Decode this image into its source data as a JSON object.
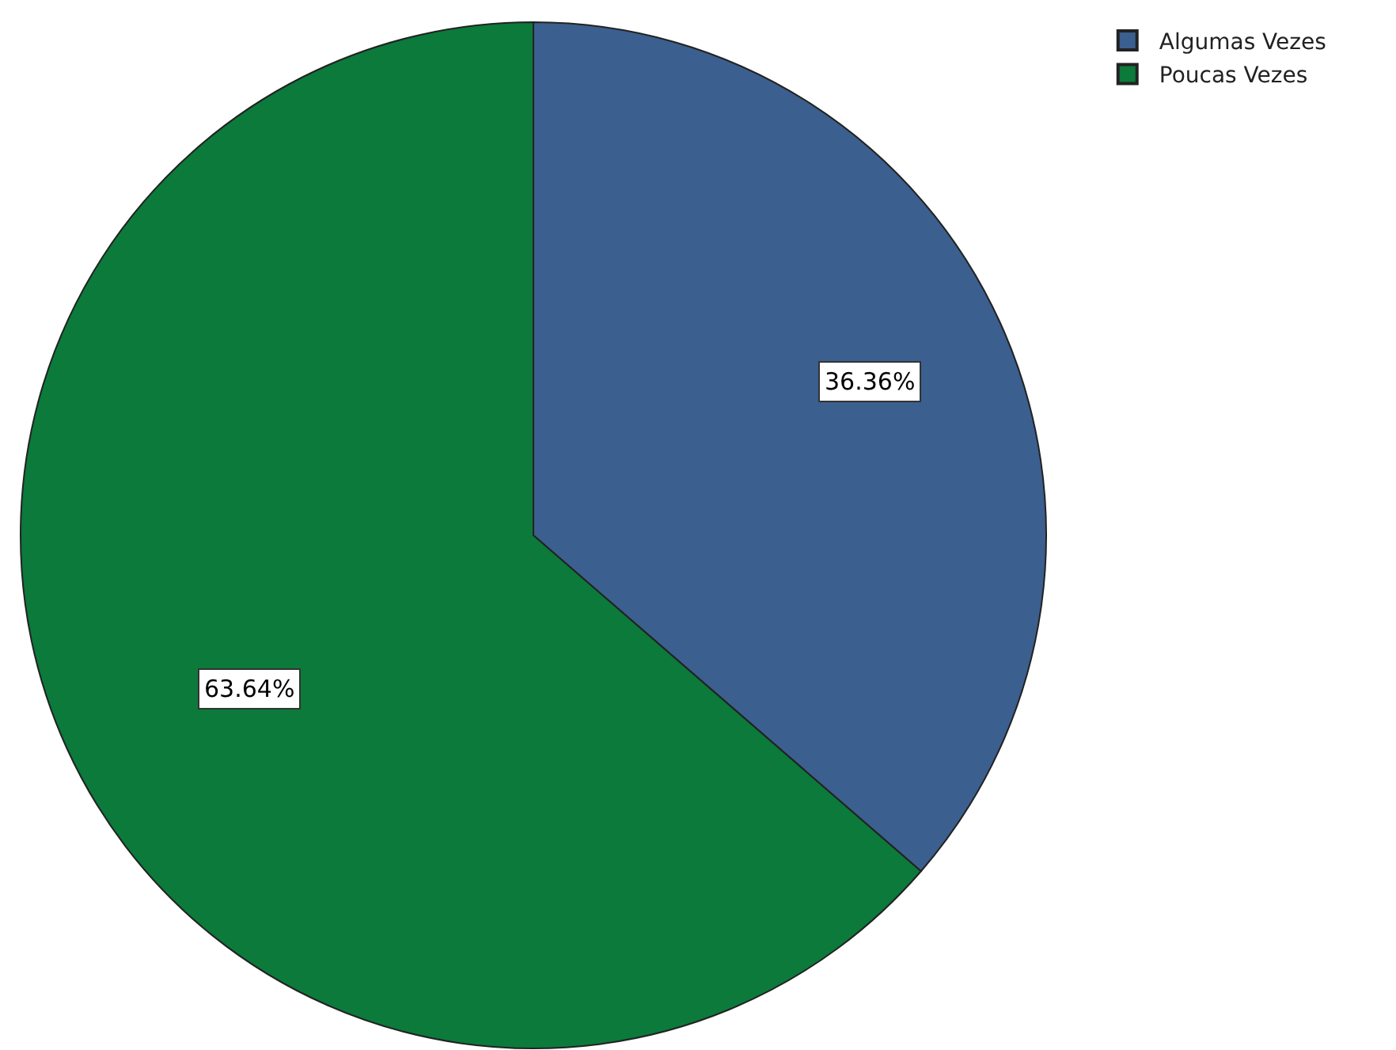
{
  "chart_data": {
    "type": "pie",
    "categories": [
      "Algumas Vezes",
      "Poucas Vezes"
    ],
    "values": [
      36.36,
      63.64
    ],
    "colors": [
      "#3b5f8e",
      "#0b7a3b"
    ],
    "value_labels": [
      "36.36%",
      "63.64%"
    ],
    "legend": "top right"
  }
}
